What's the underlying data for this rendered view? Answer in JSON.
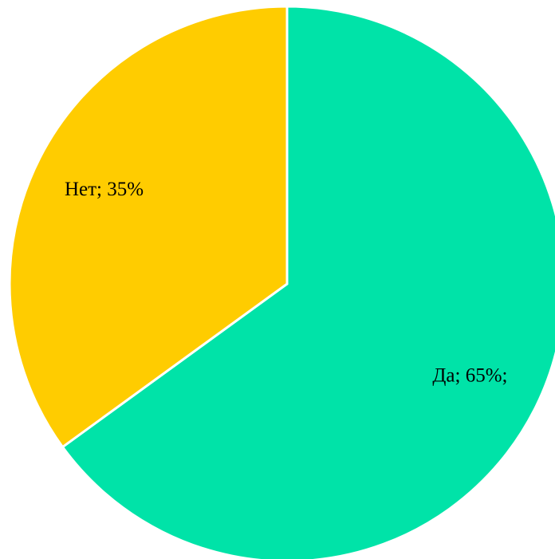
{
  "chart_data": {
    "type": "pie",
    "categories": [
      "Да",
      "Нет"
    ],
    "values": [
      65,
      35
    ],
    "value_labels": [
      "Да; 65%;",
      "Нет; 35%"
    ],
    "colors": [
      "#00e3a8",
      "#ffcc00"
    ]
  }
}
